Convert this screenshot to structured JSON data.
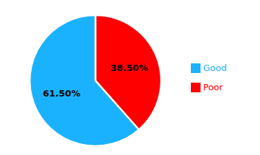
{
  "chart_data": {
    "type": "pie",
    "categories": [
      "Poor",
      "Good"
    ],
    "values": [
      38.5,
      61.5
    ],
    "colors": [
      "#ff0000",
      "#1ab2ff"
    ],
    "value_labels": [
      "38.50%",
      "61.50%"
    ],
    "data_labels": true,
    "legend": "right"
  }
}
